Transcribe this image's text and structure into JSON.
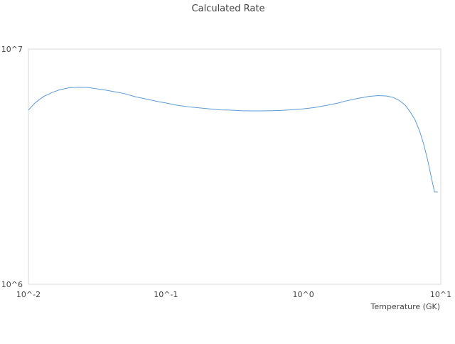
{
  "chart_data": {
    "type": "line",
    "title": "Calculated Rate",
    "xlabel": "Temperature (GK)",
    "ylabel": "",
    "x_scale": "log",
    "y_scale": "log",
    "xlim": [
      0.01,
      10
    ],
    "ylim": [
      1000000,
      10000000
    ],
    "x_ticks": [
      0.01,
      0.1,
      1,
      10
    ],
    "x_tick_labels": [
      "10^-2",
      "10^-1",
      "10^0",
      "10^1"
    ],
    "y_ticks": [
      1000000,
      10000000
    ],
    "y_tick_labels": [
      "10^6",
      "10^7"
    ],
    "grid": false,
    "legend": "none",
    "series": [
      {
        "color": "#5b9bd5",
        "x": [
          0.01,
          0.011,
          0.012,
          0.013,
          0.015,
          0.017,
          0.02,
          0.023,
          0.027,
          0.03,
          0.035,
          0.04,
          0.045,
          0.05,
          0.06,
          0.07,
          0.08,
          0.09,
          0.1,
          0.12,
          0.15,
          0.2,
          0.25,
          0.3,
          0.35,
          0.4,
          0.5,
          0.6,
          0.7,
          0.8,
          1.0,
          1.2,
          1.5,
          1.8,
          2.0,
          2.5,
          3.0,
          3.5,
          4.0,
          4.5,
          5.0,
          5.5,
          6.0,
          6.5,
          7.0,
          7.5,
          8.0,
          8.5,
          9.0,
          9.5
        ],
        "y": [
          5500000,
          5850000,
          6100000,
          6300000,
          6550000,
          6720000,
          6850000,
          6880000,
          6870000,
          6800000,
          6720000,
          6620000,
          6540000,
          6460000,
          6270000,
          6150000,
          6050000,
          5960000,
          5900000,
          5770000,
          5670000,
          5580000,
          5510000,
          5500000,
          5470000,
          5460000,
          5460000,
          5470000,
          5490000,
          5510000,
          5570000,
          5640000,
          5770000,
          5900000,
          6000000,
          6170000,
          6290000,
          6340000,
          6320000,
          6230000,
          6040000,
          5780000,
          5400000,
          5000000,
          4500000,
          3950000,
          3400000,
          2880000,
          2470000,
          2470000
        ]
      }
    ]
  }
}
